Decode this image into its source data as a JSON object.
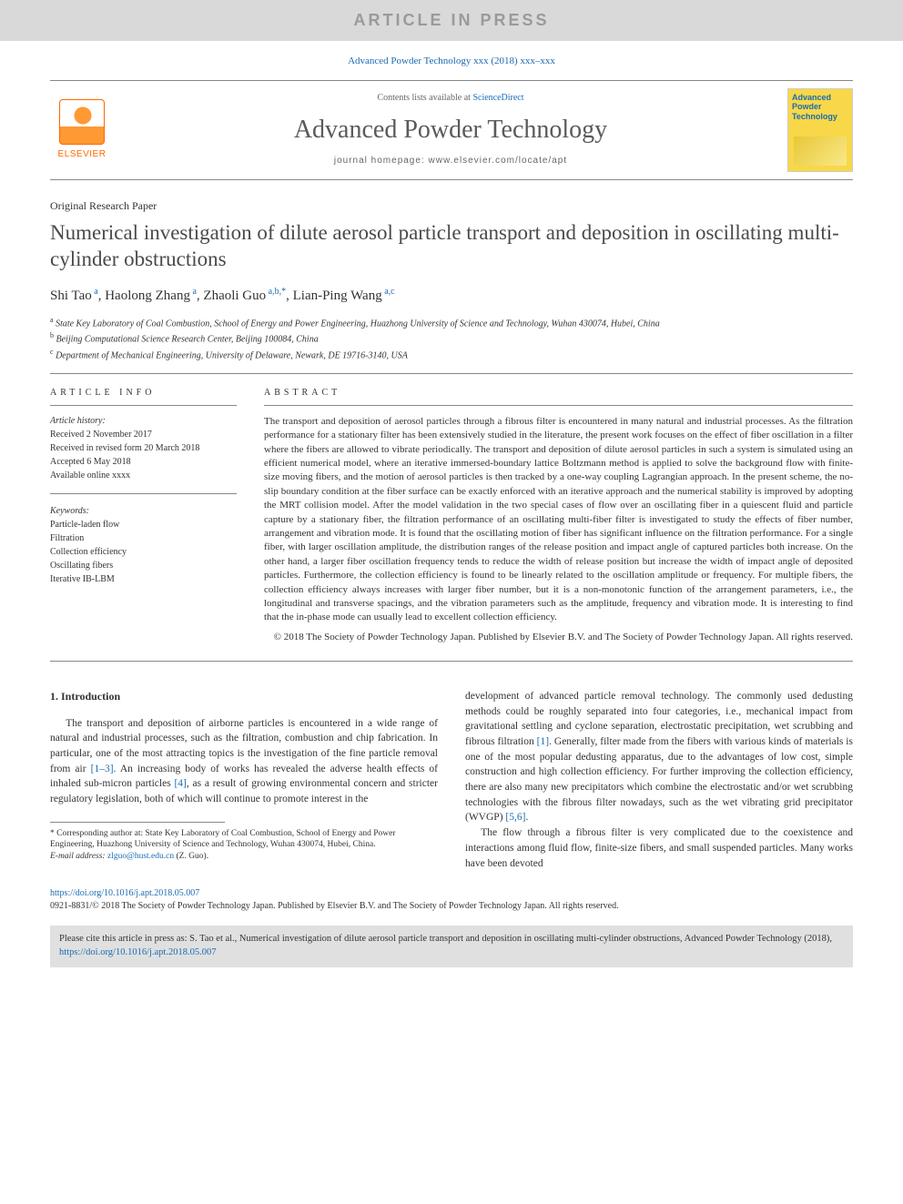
{
  "banner": "ARTICLE IN PRESS",
  "citation": "Advanced Powder Technology xxx (2018) xxx–xxx",
  "header": {
    "elsevier": "ELSEVIER",
    "contents_prefix": "Contents lists available at ",
    "contents_link": "ScienceDirect",
    "journal": "Advanced Powder Technology",
    "homepage_label": "journal homepage: ",
    "homepage_url": "www.elsevier.com/locate/apt",
    "cover_title": "Advanced Powder Technology"
  },
  "paper": {
    "type": "Original Research Paper",
    "title": "Numerical investigation of dilute aerosol particle transport and deposition in oscillating multi-cylinder obstructions",
    "authors_html": "Shi Tao<sup>a</sup>, Haolong Zhang<sup>a</sup>, Zhaoli Guo<sup>a,b,*</sup>, Lian-Ping Wang<sup>a,c</sup>",
    "affiliations": {
      "a": "State Key Laboratory of Coal Combustion, School of Energy and Power Engineering, Huazhong University of Science and Technology, Wuhan 430074, Hubei, China",
      "b": "Beijing Computational Science Research Center, Beijing 100084, China",
      "c": "Department of Mechanical Engineering, University of Delaware, Newark, DE 19716-3140, USA"
    }
  },
  "info": {
    "header": "ARTICLE INFO",
    "history_label": "Article history:",
    "received": "Received 2 November 2017",
    "revised": "Received in revised form 20 March 2018",
    "accepted": "Accepted 6 May 2018",
    "online": "Available online xxxx",
    "keywords_label": "Keywords:",
    "keywords": [
      "Particle-laden flow",
      "Filtration",
      "Collection efficiency",
      "Oscillating fibers",
      "Iterative IB-LBM"
    ]
  },
  "abstract": {
    "header": "ABSTRACT",
    "text": "The transport and deposition of aerosol particles through a fibrous filter is encountered in many natural and industrial processes. As the filtration performance for a stationary filter has been extensively studied in the literature, the present work focuses on the effect of fiber oscillation in a filter where the fibers are allowed to vibrate periodically. The transport and deposition of dilute aerosol particles in such a system is simulated using an efficient numerical model, where an iterative immersed-boundary lattice Boltzmann method is applied to solve the background flow with finite-size moving fibers, and the motion of aerosol particles is then tracked by a one-way coupling Lagrangian approach. In the present scheme, the no-slip boundary condition at the fiber surface can be exactly enforced with an iterative approach and the numerical stability is improved by adopting the MRT collision model. After the model validation in the two special cases of flow over an oscillating fiber in a quiescent fluid and particle capture by a stationary fiber, the filtration performance of an oscillating multi-fiber filter is investigated to study the effects of fiber number, arrangement and vibration mode. It is found that the oscillating motion of fiber has significant influence on the filtration performance. For a single fiber, with larger oscillation amplitude, the distribution ranges of the release position and impact angle of captured particles both increase. On the other hand, a larger fiber oscillation frequency tends to reduce the width of release position but increase the width of impact angle of deposited particles. Furthermore, the collection efficiency is found to be linearly related to the oscillation amplitude or frequency. For multiple fibers, the collection efficiency always increases with larger fiber number, but it is a non-monotonic function of the arrangement parameters, i.e., the longitudinal and transverse spacings, and the vibration parameters such as the amplitude, frequency and vibration mode. It is interesting to find that the in-phase mode can usually lead to excellent collection efficiency.",
    "copyright": "© 2018 The Society of Powder Technology Japan. Published by Elsevier B.V. and The Society of Powder Technology Japan. All rights reserved."
  },
  "body": {
    "section_heading": "1. Introduction",
    "col1_p1_pre": "The transport and deposition of airborne particles is encountered in a wide range of natural and industrial processes, such as the filtration, combustion and chip fabrication. In particular, one of the most attracting topics is the investigation of the fine particle removal from air ",
    "ref1": "[1–3]",
    "col1_p1_mid": ". An increasing body of works has revealed the adverse health effects of inhaled sub-micron particles ",
    "ref4": "[4]",
    "col1_p1_post": ", as a result of growing environmental concern and stricter regulatory legislation, both of which will continue to promote interest in the",
    "col2_p1_pre": "development of advanced particle removal technology. The commonly used dedusting methods could be roughly separated into four categories, i.e., mechanical impact from gravitational settling and cyclone separation, electrostatic precipitation, wet scrubbing and fibrous filtration ",
    "ref1b": "[1]",
    "col2_p1_mid": ". Generally, filter made from the fibers with various kinds of materials is one of the most popular dedusting apparatus, due to the advantages of low cost, simple construction and high collection efficiency. For further improving the collection efficiency, there are also many new precipitators which combine the electrostatic and/or wet scrubbing technologies with the fibrous filter nowadays, such as the wet vibrating grid precipitator (WVGP) ",
    "ref56": "[5,6]",
    "col2_p1_post": ".",
    "col2_p2": "The flow through a fibrous filter is very complicated due to the coexistence and interactions among fluid flow, finite-size fibers, and small suspended particles. Many works have been devoted"
  },
  "footnote": {
    "corr_label": "* Corresponding author at: State Key Laboratory of Coal Combustion, School of Energy and Power Engineering, Huazhong University of Science and Technology, Wuhan 430074, Hubei, China.",
    "email_label": "E-mail address: ",
    "email": "zlguo@hust.edu.cn",
    "email_suffix": " (Z. Guo)."
  },
  "footer": {
    "doi": "https://doi.org/10.1016/j.apt.2018.05.007",
    "issn_copyright": "0921-8831/© 2018 The Society of Powder Technology Japan. Published by Elsevier B.V. and The Society of Powder Technology Japan. All rights reserved.",
    "citebox_pre": "Please cite this article in press as: S. Tao et al., Numerical investigation of dilute aerosol particle transport and deposition in oscillating multi-cylinder obstructions, Advanced Powder Technology (2018), ",
    "citebox_link": "https://doi.org/10.1016/j.apt.2018.05.007"
  },
  "colors": {
    "banner_bg": "#d9d9d9",
    "banner_fg": "#9a9a9a",
    "link": "#1a6bb3",
    "elsevier": "#ff6600",
    "cover_bg": "#f8d848",
    "citebox_bg": "#e0e0e0",
    "text": "#333333",
    "rule": "#888888"
  }
}
